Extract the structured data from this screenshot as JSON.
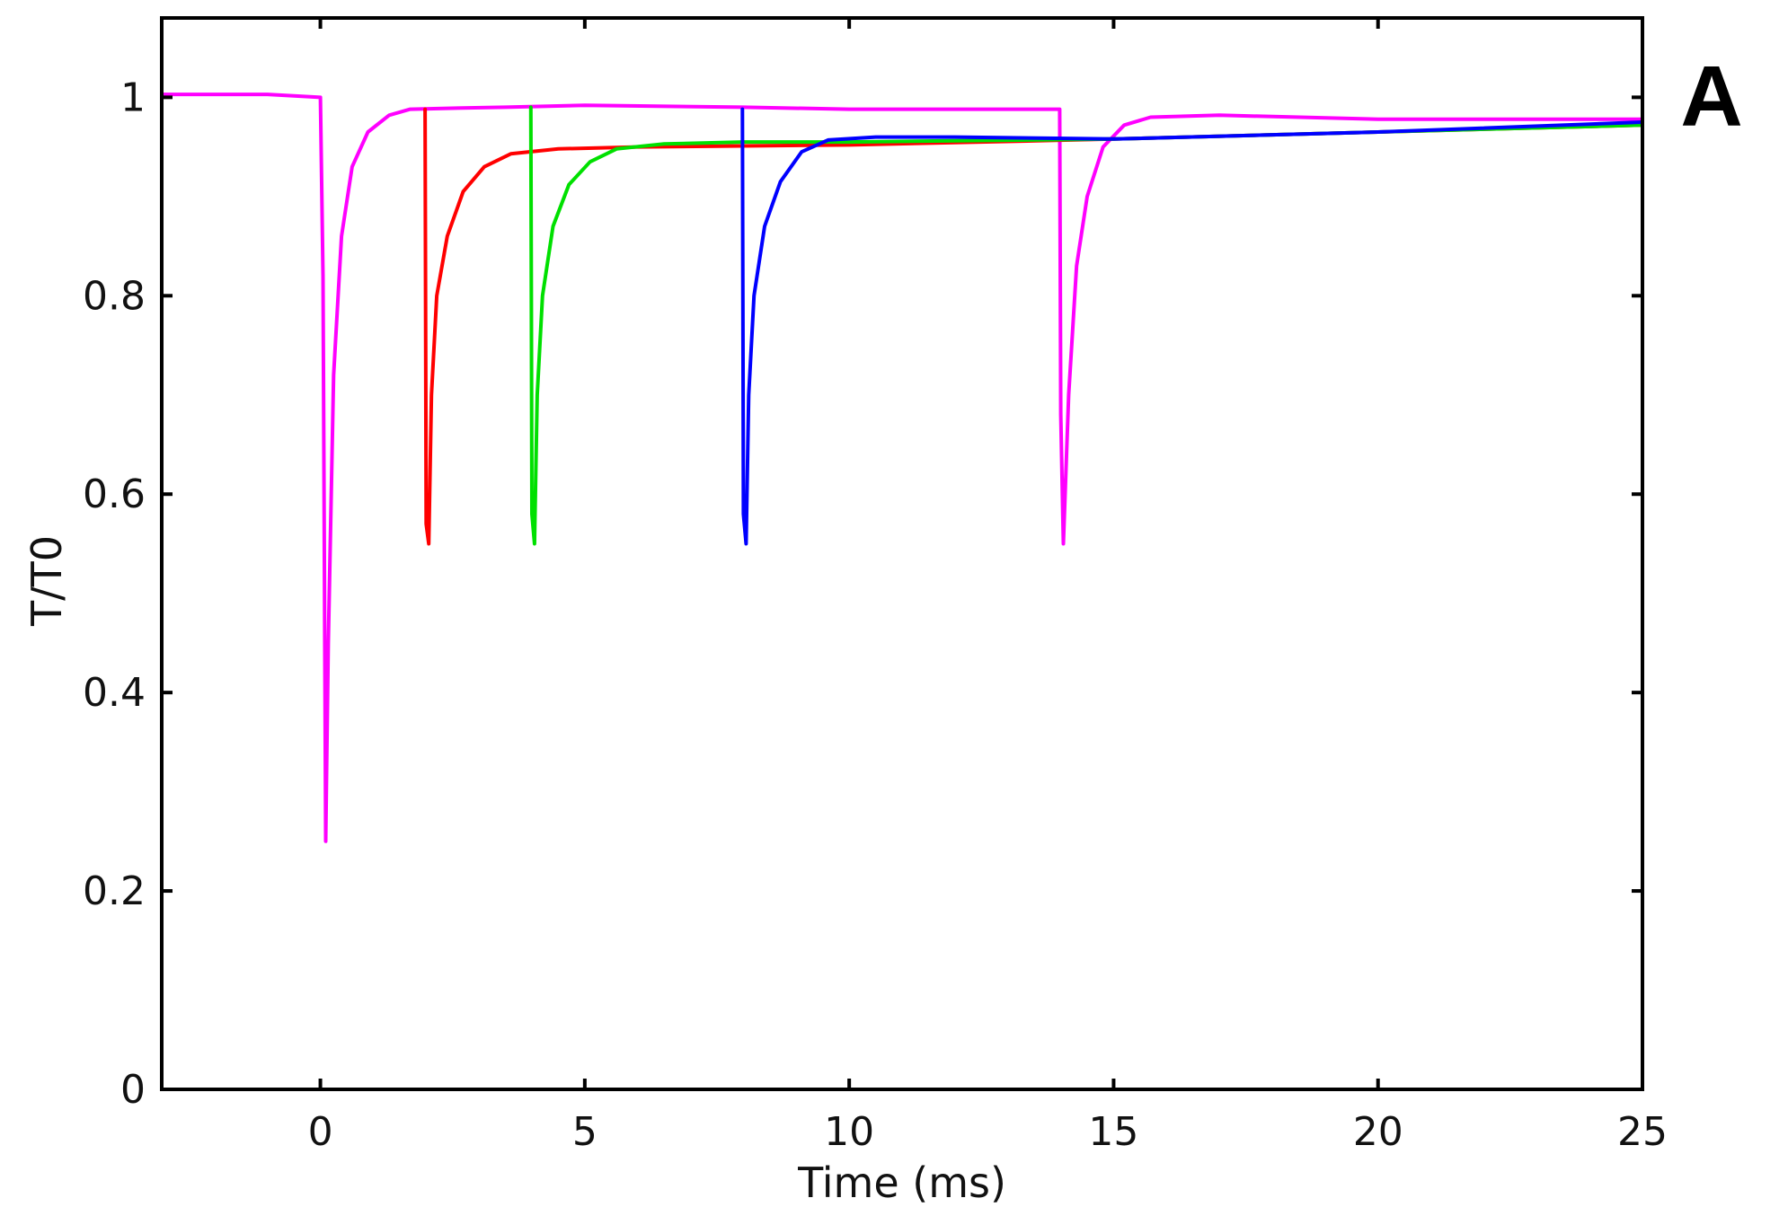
{
  "chart_data": {
    "type": "line",
    "title": "",
    "xlabel": "Time (ms)",
    "ylabel": "T/T0",
    "panel_label": "A",
    "xlim": [
      -3,
      25
    ],
    "ylim": [
      0,
      1.08
    ],
    "xticks": [
      0,
      5,
      10,
      15,
      20,
      25
    ],
    "yticks": [
      0,
      0.2,
      0.4,
      0.6,
      0.8,
      1
    ],
    "xtick_labels": [
      "0",
      "5",
      "10",
      "15",
      "20",
      "25"
    ],
    "ytick_labels": [
      "0",
      "0.2",
      "0.4",
      "0.6",
      "0.8",
      "1"
    ],
    "grid": false,
    "legend": false,
    "series": [
      {
        "color": "#ff00ff",
        "x": [
          -3,
          -1,
          0,
          0.05,
          0.1,
          0.15,
          0.25,
          0.4,
          0.6,
          0.9,
          1.3,
          1.7,
          2.5,
          3.5,
          5,
          8,
          10,
          12,
          13.98,
          14.0,
          14.05,
          14.15,
          14.3,
          14.5,
          14.8,
          15.2,
          15.7,
          17,
          20,
          25
        ],
        "y": [
          1.003,
          1.003,
          1.0,
          0.82,
          0.25,
          0.45,
          0.72,
          0.86,
          0.93,
          0.965,
          0.982,
          0.988,
          0.989,
          0.99,
          0.992,
          0.99,
          0.988,
          0.988,
          0.988,
          0.68,
          0.55,
          0.7,
          0.83,
          0.9,
          0.95,
          0.972,
          0.98,
          0.982,
          0.978,
          0.978
        ]
      },
      {
        "color": "#ff0000",
        "x": [
          1.98,
          2.0,
          2.05,
          2.1,
          2.2,
          2.4,
          2.7,
          3.1,
          3.6,
          4.5,
          6,
          10,
          15,
          20,
          25
        ],
        "y": [
          0.988,
          0.57,
          0.55,
          0.7,
          0.8,
          0.86,
          0.905,
          0.93,
          0.943,
          0.948,
          0.95,
          0.952,
          0.958,
          0.965,
          0.972
        ]
      },
      {
        "color": "#00e000",
        "x": [
          3.98,
          4.0,
          4.05,
          4.1,
          4.2,
          4.4,
          4.7,
          5.1,
          5.6,
          6.5,
          8,
          10,
          15,
          20,
          25
        ],
        "y": [
          0.99,
          0.58,
          0.55,
          0.7,
          0.8,
          0.87,
          0.912,
          0.935,
          0.948,
          0.953,
          0.955,
          0.955,
          0.958,
          0.965,
          0.972
        ]
      },
      {
        "color": "#0000ff",
        "x": [
          7.98,
          8.0,
          8.05,
          8.1,
          8.2,
          8.4,
          8.7,
          9.1,
          9.6,
          10.5,
          12,
          15,
          20,
          25
        ],
        "y": [
          0.988,
          0.58,
          0.55,
          0.7,
          0.8,
          0.87,
          0.915,
          0.945,
          0.957,
          0.96,
          0.96,
          0.958,
          0.965,
          0.975
        ]
      }
    ]
  }
}
